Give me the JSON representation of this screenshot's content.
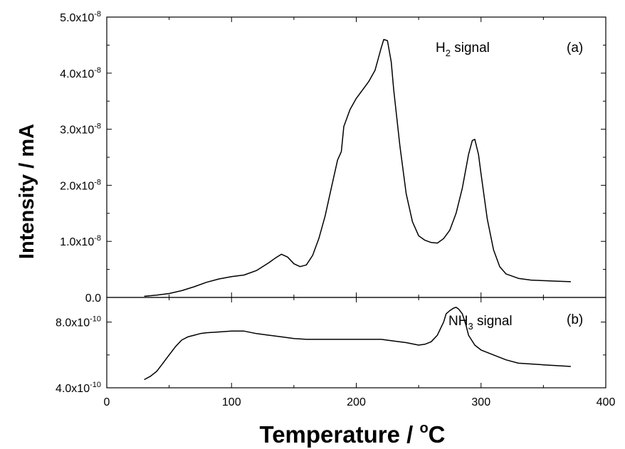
{
  "chart_data": [
    {
      "type": "line",
      "panel_label": "(a)",
      "annotation": {
        "main": "H",
        "sub": "2",
        "rest": " signal"
      },
      "xlim": [
        0,
        400
      ],
      "ylim": [
        0,
        5e-08
      ],
      "y_ticks": [
        {
          "value": 0,
          "mant": "0.0",
          "exp": ""
        },
        {
          "value": 1e-08,
          "mant": "1.0x10",
          "exp": "-8"
        },
        {
          "value": 2e-08,
          "mant": "2.0x10",
          "exp": "-8"
        },
        {
          "value": 3e-08,
          "mant": "3.0x10",
          "exp": "-8"
        },
        {
          "value": 4e-08,
          "mant": "4.0x10",
          "exp": "-8"
        },
        {
          "value": 5e-08,
          "mant": "5.0x10",
          "exp": "-8"
        }
      ],
      "series": [
        {
          "x": [
            30,
            40,
            50,
            60,
            70,
            80,
            90,
            100,
            110,
            120,
            130,
            135,
            140,
            145,
            150,
            155,
            160,
            165,
            170,
            175,
            180,
            185,
            188,
            190,
            195,
            200,
            205,
            210,
            215,
            220,
            222,
            225,
            228,
            230,
            235,
            240,
            245,
            250,
            255,
            260,
            265,
            270,
            275,
            280,
            285,
            290,
            293,
            295,
            298,
            300,
            305,
            310,
            315,
            320,
            330,
            340,
            350,
            360,
            372
          ],
          "y": [
            2e-10,
            4e-10,
            7e-10,
            1.2e-09,
            1.9e-09,
            2.7e-09,
            3.3e-09,
            3.7e-09,
            4e-09,
            4.8e-09,
            6.2e-09,
            7e-09,
            7.7e-09,
            7.2e-09,
            6e-09,
            5.5e-09,
            5.8e-09,
            7.5e-09,
            1.05e-08,
            1.45e-08,
            1.95e-08,
            2.45e-08,
            2.6e-08,
            3.05e-08,
            3.35e-08,
            3.55e-08,
            3.7e-08,
            3.85e-08,
            4.05e-08,
            4.45e-08,
            4.6e-08,
            4.58e-08,
            4.2e-08,
            3.7e-08,
            2.7e-08,
            1.85e-08,
            1.35e-08,
            1.1e-08,
            1.02e-08,
            9.8e-09,
            9.7e-09,
            1.05e-08,
            1.2e-08,
            1.5e-08,
            1.95e-08,
            2.55e-08,
            2.8e-08,
            2.82e-08,
            2.55e-08,
            2.2e-08,
            1.4e-08,
            8.5e-09,
            5.5e-09,
            4.2e-09,
            3.4e-09,
            3.1e-09,
            3e-09,
            2.9e-09,
            2.8e-09
          ]
        }
      ]
    },
    {
      "type": "line",
      "panel_label": "(b)",
      "annotation": {
        "main": "NH",
        "sub": "3",
        "rest": " signal"
      },
      "xlim": [
        0,
        400
      ],
      "ylim": [
        4e-10,
        9.5e-10
      ],
      "y_ticks": [
        {
          "value": 4e-10,
          "mant": "4.0x10",
          "exp": "-10"
        },
        {
          "value": 8e-10,
          "mant": "8.0x10",
          "exp": "-10"
        }
      ],
      "series": [
        {
          "x": [
            30,
            35,
            40,
            45,
            50,
            55,
            60,
            65,
            70,
            75,
            80,
            90,
            100,
            110,
            120,
            130,
            140,
            150,
            160,
            170,
            180,
            190,
            200,
            210,
            220,
            230,
            240,
            250,
            255,
            260,
            265,
            270,
            272,
            275,
            278,
            280,
            282,
            285,
            288,
            290,
            295,
            300,
            310,
            320,
            330,
            340,
            350,
            360,
            372
          ],
          "y": [
            4.5e-10,
            4.7e-10,
            5e-10,
            5.5e-10,
            6e-10,
            6.5e-10,
            6.9e-10,
            7.1e-10,
            7.2e-10,
            7.3e-10,
            7.35e-10,
            7.4e-10,
            7.45e-10,
            7.45e-10,
            7.3e-10,
            7.2e-10,
            7.1e-10,
            7e-10,
            6.95e-10,
            6.95e-10,
            6.95e-10,
            6.95e-10,
            6.95e-10,
            6.95e-10,
            6.95e-10,
            6.85e-10,
            6.75e-10,
            6.6e-10,
            6.65e-10,
            6.8e-10,
            7.2e-10,
            8e-10,
            8.5e-10,
            8.7e-10,
            8.85e-10,
            8.9e-10,
            8.8e-10,
            8.5e-10,
            7.8e-10,
            7.2e-10,
            6.6e-10,
            6.3e-10,
            6e-10,
            5.7e-10,
            5.5e-10,
            5.45e-10,
            5.4e-10,
            5.35e-10,
            5.3e-10
          ]
        }
      ]
    }
  ],
  "x_ticks": [
    "0",
    "100",
    "200",
    "300",
    "400"
  ],
  "x_tick_values": [
    0,
    100,
    200,
    300,
    400
  ],
  "xlabel": {
    "main": "Temperature / ",
    "sup": "o",
    "rest": "C"
  },
  "ylabel": "Intensity / mA"
}
